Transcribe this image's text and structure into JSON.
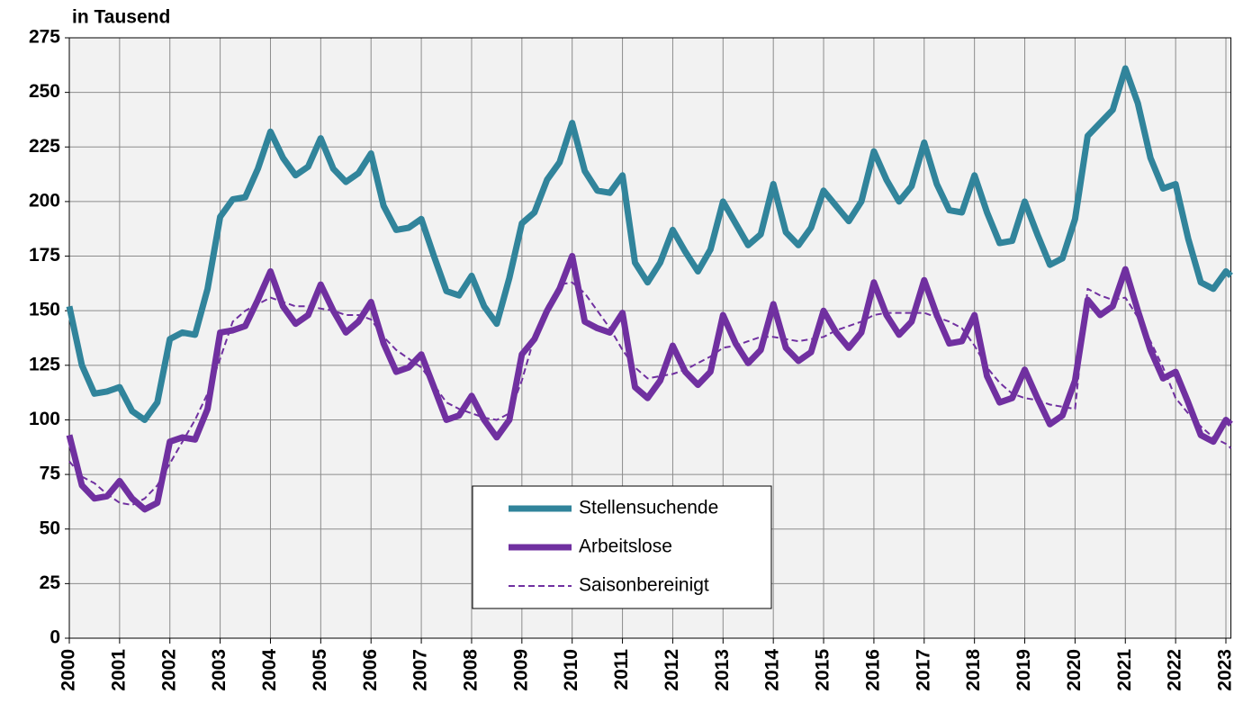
{
  "chart_data": {
    "type": "line",
    "y_label": "in Tausend",
    "x": [
      2000,
      2000.25,
      2000.5,
      2000.75,
      2001,
      2001.25,
      2001.5,
      2001.75,
      2002,
      2002.25,
      2002.5,
      2002.75,
      2003,
      2003.25,
      2003.5,
      2003.75,
      2004,
      2004.25,
      2004.5,
      2004.75,
      2005,
      2005.25,
      2005.5,
      2005.75,
      2006,
      2006.25,
      2006.5,
      2006.75,
      2007,
      2007.25,
      2007.5,
      2007.75,
      2008,
      2008.25,
      2008.5,
      2008.75,
      2009,
      2009.25,
      2009.5,
      2009.75,
      2010,
      2010.25,
      2010.5,
      2010.75,
      2011,
      2011.25,
      2011.5,
      2011.75,
      2012,
      2012.25,
      2012.5,
      2012.75,
      2013,
      2013.25,
      2013.5,
      2013.75,
      2014,
      2014.25,
      2014.5,
      2014.75,
      2015,
      2015.25,
      2015.5,
      2015.75,
      2016,
      2016.25,
      2016.5,
      2016.75,
      2017,
      2017.25,
      2017.5,
      2017.75,
      2018,
      2018.25,
      2018.5,
      2018.75,
      2019,
      2019.25,
      2019.5,
      2019.75,
      2020,
      2020.25,
      2020.5,
      2020.75,
      2021,
      2021.25,
      2021.5,
      2021.75,
      2022,
      2022.25,
      2022.5,
      2022.75,
      2023,
      2023.1
    ],
    "series": [
      {
        "name": "Stellensuchende",
        "color": "#31849b",
        "linestyle": "solid",
        "values": [
          152,
          125,
          112,
          113,
          115,
          104,
          100,
          108,
          137,
          140,
          139,
          160,
          193,
          201,
          202,
          215,
          232,
          220,
          212,
          216,
          229,
          215,
          209,
          213,
          222,
          198,
          187,
          188,
          192,
          175,
          159,
          157,
          166,
          152,
          144,
          165,
          190,
          195,
          210,
          218,
          236,
          214,
          205,
          204,
          212,
          172,
          163,
          172,
          187,
          177,
          168,
          178,
          200,
          190,
          180,
          185,
          208,
          186,
          180,
          188,
          205,
          198,
          191,
          200,
          223,
          210,
          200,
          207,
          227,
          208,
          196,
          195,
          212,
          195,
          181,
          182,
          200,
          185,
          171,
          174,
          192,
          230,
          236,
          242,
          261,
          245,
          220,
          206,
          208,
          183,
          163,
          160,
          168,
          166
        ]
      },
      {
        "name": "Arbeitslose",
        "color": "#7030a0",
        "linestyle": "solid",
        "values": [
          93,
          70,
          64,
          65,
          72,
          64,
          59,
          62,
          90,
          92,
          91,
          105,
          140,
          141,
          143,
          155,
          168,
          152,
          144,
          148,
          162,
          150,
          140,
          145,
          154,
          135,
          122,
          124,
          130,
          115,
          100,
          102,
          111,
          100,
          92,
          100,
          130,
          137,
          150,
          160,
          175,
          145,
          142,
          140,
          149,
          115,
          110,
          118,
          134,
          122,
          116,
          122,
          148,
          135,
          126,
          132,
          153,
          133,
          127,
          131,
          150,
          140,
          133,
          140,
          163,
          148,
          139,
          145,
          164,
          148,
          135,
          136,
          148,
          120,
          108,
          110,
          123,
          110,
          98,
          102,
          118,
          155,
          148,
          152,
          169,
          150,
          132,
          119,
          122,
          108,
          93,
          90,
          100,
          98
        ]
      },
      {
        "name": "Saisonbereinigt",
        "color": "#7030a0",
        "linestyle": "dashed",
        "values": [
          81,
          74,
          71,
          66,
          62,
          61,
          64,
          70,
          80,
          90,
          100,
          112,
          128,
          145,
          150,
          153,
          156,
          154,
          152,
          152,
          151,
          150,
          148,
          148,
          146,
          138,
          132,
          128,
          124,
          116,
          108,
          105,
          103,
          101,
          100,
          103,
          118,
          138,
          152,
          162,
          163,
          158,
          150,
          142,
          132,
          124,
          119,
          120,
          121,
          123,
          126,
          129,
          133,
          134,
          136,
          138,
          138,
          137,
          136,
          137,
          138,
          141,
          143,
          145,
          148,
          149,
          149,
          149,
          149,
          147,
          145,
          142,
          134,
          124,
          117,
          112,
          110,
          109,
          107,
          106,
          105,
          160,
          157,
          155,
          156,
          147,
          136,
          124,
          110,
          103,
          97,
          92,
          89,
          87
        ]
      }
    ],
    "xlim": [
      2000,
      2023.1
    ],
    "xticks": [
      2000,
      2001,
      2002,
      2003,
      2004,
      2005,
      2006,
      2007,
      2008,
      2009,
      2010,
      2011,
      2012,
      2013,
      2014,
      2015,
      2016,
      2017,
      2018,
      2019,
      2020,
      2021,
      2022,
      2023
    ],
    "ylim": [
      0,
      275
    ],
    "yticks": [
      0,
      25,
      50,
      75,
      100,
      125,
      150,
      175,
      200,
      225,
      250,
      275
    ],
    "grid": true,
    "legend": "bottom-center"
  }
}
